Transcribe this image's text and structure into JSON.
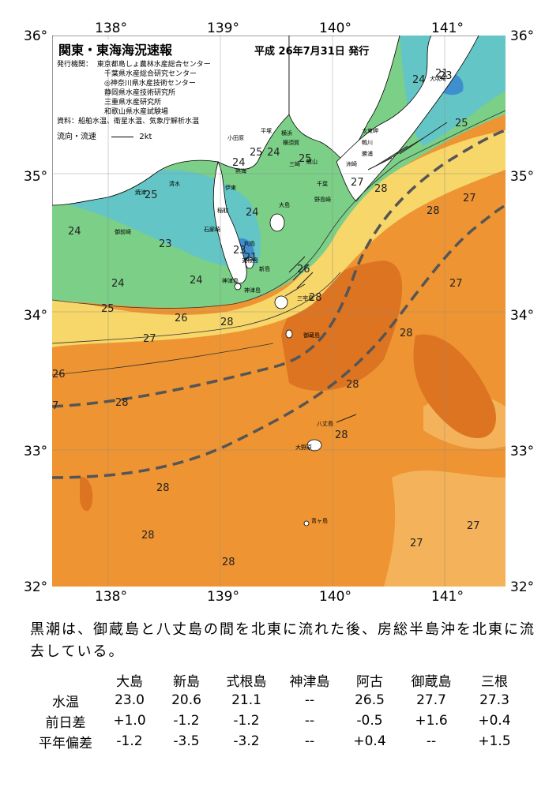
{
  "header": {
    "title": "関東・東海海況速報",
    "date": "平成 26年7月31日 発行"
  },
  "info": {
    "issuer_label": "発行機関：",
    "issuers": [
      "東京都島しょ農林水産総合センター",
      "千葉県水産総合研究センター",
      "◎神奈川県水産技術センター",
      "静岡県水産技術研究所",
      "三重県水産研究所",
      "和歌山県水産試験場"
    ],
    "source_label": "資料：船舶水温、衛星水温、気象庁解析水温",
    "legend_label": "流向・流速",
    "legend_value": "2kt"
  },
  "axes": {
    "lon_labels": [
      "138°",
      "139°",
      "140°",
      "141°"
    ],
    "lat_labels_left": [
      "36°",
      "35°",
      "34°",
      "33°",
      "32°"
    ],
    "lat_labels_right": [
      "36°",
      "35°",
      "34°",
      "33°",
      "32°"
    ]
  },
  "isotherm_labels": [
    "24",
    "23",
    "21",
    "24",
    "25",
    "24",
    "25",
    "24",
    "24",
    "25",
    "25",
    "23",
    "21",
    "23",
    "24",
    "24",
    "25",
    "26",
    "26",
    "28",
    "28",
    "27",
    "27",
    "28",
    "27",
    "28",
    "27",
    "28",
    "28",
    "28",
    "28",
    "28",
    "28",
    "28",
    "27",
    "27",
    "26",
    "7"
  ],
  "places": [
    "大島",
    "新島",
    "式根島",
    "神津島",
    "三宅島",
    "御蔵島",
    "八丈島",
    "青ヶ島",
    "犬吠埼",
    "太東岬",
    "勝浦",
    "館山",
    "千葉",
    "横浜",
    "横須賀",
    "三崎",
    "野島崎",
    "小田原",
    "熱海",
    "伊東",
    "稲取",
    "石廊崎",
    "御前崎",
    "焼津",
    "清水",
    "平塚",
    "鴨川",
    "洲崎",
    "利島",
    "神津島",
    "大野原"
  ],
  "summary": "黒潮は、御蔵島と八丈島の間を北東に流れた後、房総半島沖を北東に流去している。",
  "table": {
    "columns": [
      "大島",
      "新島",
      "式根島",
      "神津島",
      "阿古",
      "御蔵島",
      "三根"
    ],
    "rows": [
      {
        "label": "水温",
        "values": [
          "23.0",
          "20.6",
          "21.1",
          "--",
          "26.5",
          "27.7",
          "27.3"
        ]
      },
      {
        "label": "前日差",
        "values": [
          "+1.0",
          "-1.2",
          "-1.2",
          "--",
          "-0.5",
          "+1.6",
          "+0.4"
        ]
      },
      {
        "label": "平年偏差",
        "values": [
          "-1.2",
          "-3.5",
          "-3.2",
          "--",
          "+0.4",
          "--",
          "+1.5"
        ]
      }
    ]
  },
  "colors": {
    "warm": "#ee9432",
    "warmer": "#dc7422",
    "mid": "#f4b35a",
    "yellowish": "#f7d66a",
    "green": "#7ccf86",
    "teal": "#64c5c6",
    "blue": "#3f8fcf",
    "land": "#ffffff",
    "kuroshio": "#555555"
  }
}
